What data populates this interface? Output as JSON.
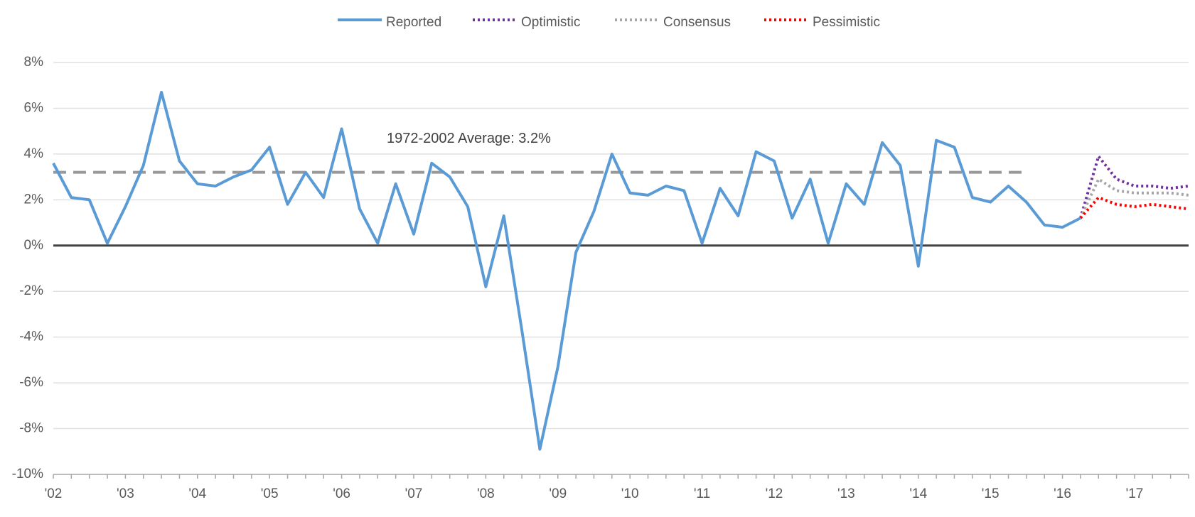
{
  "chart_data": {
    "type": "line",
    "categories": [
      "'02",
      null,
      null,
      null,
      "'03",
      null,
      null,
      null,
      "'04",
      null,
      null,
      null,
      "'05",
      null,
      null,
      null,
      "'06",
      null,
      null,
      null,
      "'07",
      null,
      null,
      null,
      "'08",
      null,
      null,
      null,
      "'09",
      null,
      null,
      null,
      "'10",
      null,
      null,
      null,
      "'11",
      null,
      null,
      null,
      "'12",
      null,
      null,
      null,
      "'13",
      null,
      null,
      null,
      "'14",
      null,
      null,
      null,
      "'15",
      null,
      null,
      null,
      "'16",
      null,
      null,
      null,
      "'17",
      null,
      null,
      null
    ],
    "series": [
      {
        "name": "Reported",
        "color": "#5b9bd5",
        "style": "solid",
        "values": [
          3.6,
          2.1,
          2.0,
          0.1,
          1.7,
          3.5,
          6.7,
          3.7,
          2.7,
          2.6,
          3.0,
          3.3,
          4.3,
          1.8,
          3.2,
          2.1,
          5.1,
          1.6,
          0.1,
          2.7,
          0.5,
          3.6,
          3.0,
          1.7,
          -1.8,
          1.3,
          -3.7,
          -8.9,
          -5.3,
          -0.3,
          1.5,
          4.0,
          2.3,
          2.2,
          2.6,
          2.4,
          0.1,
          2.5,
          1.3,
          4.1,
          3.7,
          1.2,
          2.9,
          0.1,
          2.7,
          1.8,
          4.5,
          3.5,
          -0.9,
          4.6,
          4.3,
          2.1,
          1.9,
          2.6,
          1.9,
          0.9,
          0.8,
          1.2,
          null,
          null,
          null,
          null,
          null,
          null
        ]
      },
      {
        "name": "Optimistic",
        "color": "#7030a0",
        "style": "dotted",
        "values": [
          null,
          null,
          null,
          null,
          null,
          null,
          null,
          null,
          null,
          null,
          null,
          null,
          null,
          null,
          null,
          null,
          null,
          null,
          null,
          null,
          null,
          null,
          null,
          null,
          null,
          null,
          null,
          null,
          null,
          null,
          null,
          null,
          null,
          null,
          null,
          null,
          null,
          null,
          null,
          null,
          null,
          null,
          null,
          null,
          null,
          null,
          null,
          null,
          null,
          null,
          null,
          null,
          null,
          null,
          null,
          null,
          null,
          1.2,
          3.9,
          2.9,
          2.6,
          2.6,
          2.5,
          2.6
        ]
      },
      {
        "name": "Consensus",
        "color": "#a6a6a6",
        "style": "dotted",
        "values": [
          null,
          null,
          null,
          null,
          null,
          null,
          null,
          null,
          null,
          null,
          null,
          null,
          null,
          null,
          null,
          null,
          null,
          null,
          null,
          null,
          null,
          null,
          null,
          null,
          null,
          null,
          null,
          null,
          null,
          null,
          null,
          null,
          null,
          null,
          null,
          null,
          null,
          null,
          null,
          null,
          null,
          null,
          null,
          null,
          null,
          null,
          null,
          null,
          null,
          null,
          null,
          null,
          null,
          null,
          null,
          null,
          null,
          1.2,
          2.9,
          2.4,
          2.3,
          2.3,
          2.3,
          2.2
        ]
      },
      {
        "name": "Pessimistic",
        "color": "#ff0000",
        "style": "dotted",
        "values": [
          null,
          null,
          null,
          null,
          null,
          null,
          null,
          null,
          null,
          null,
          null,
          null,
          null,
          null,
          null,
          null,
          null,
          null,
          null,
          null,
          null,
          null,
          null,
          null,
          null,
          null,
          null,
          null,
          null,
          null,
          null,
          null,
          null,
          null,
          null,
          null,
          null,
          null,
          null,
          null,
          null,
          null,
          null,
          null,
          null,
          null,
          null,
          null,
          null,
          null,
          null,
          null,
          null,
          null,
          null,
          null,
          null,
          1.2,
          2.1,
          1.8,
          1.7,
          1.8,
          1.7,
          1.6
        ]
      }
    ],
    "ylim": [
      -10,
      8
    ],
    "yticks": [
      {
        "value": -10,
        "label": "-10%"
      },
      {
        "value": -8,
        "label": "-8%"
      },
      {
        "value": -6,
        "label": "-6%"
      },
      {
        "value": -4,
        "label": "-4%"
      },
      {
        "value": -2,
        "label": "-2%"
      },
      {
        "value": 0,
        "label": "0%"
      },
      {
        "value": 2,
        "label": "2%"
      },
      {
        "value": 4,
        "label": "4%"
      },
      {
        "value": 6,
        "label": "6%"
      },
      {
        "value": 8,
        "label": "8%"
      }
    ],
    "grid": true,
    "legend": "top",
    "reference_line": {
      "value": 3.2,
      "text": "1972-2002 Average: 3.2%",
      "color": "#999999"
    }
  }
}
